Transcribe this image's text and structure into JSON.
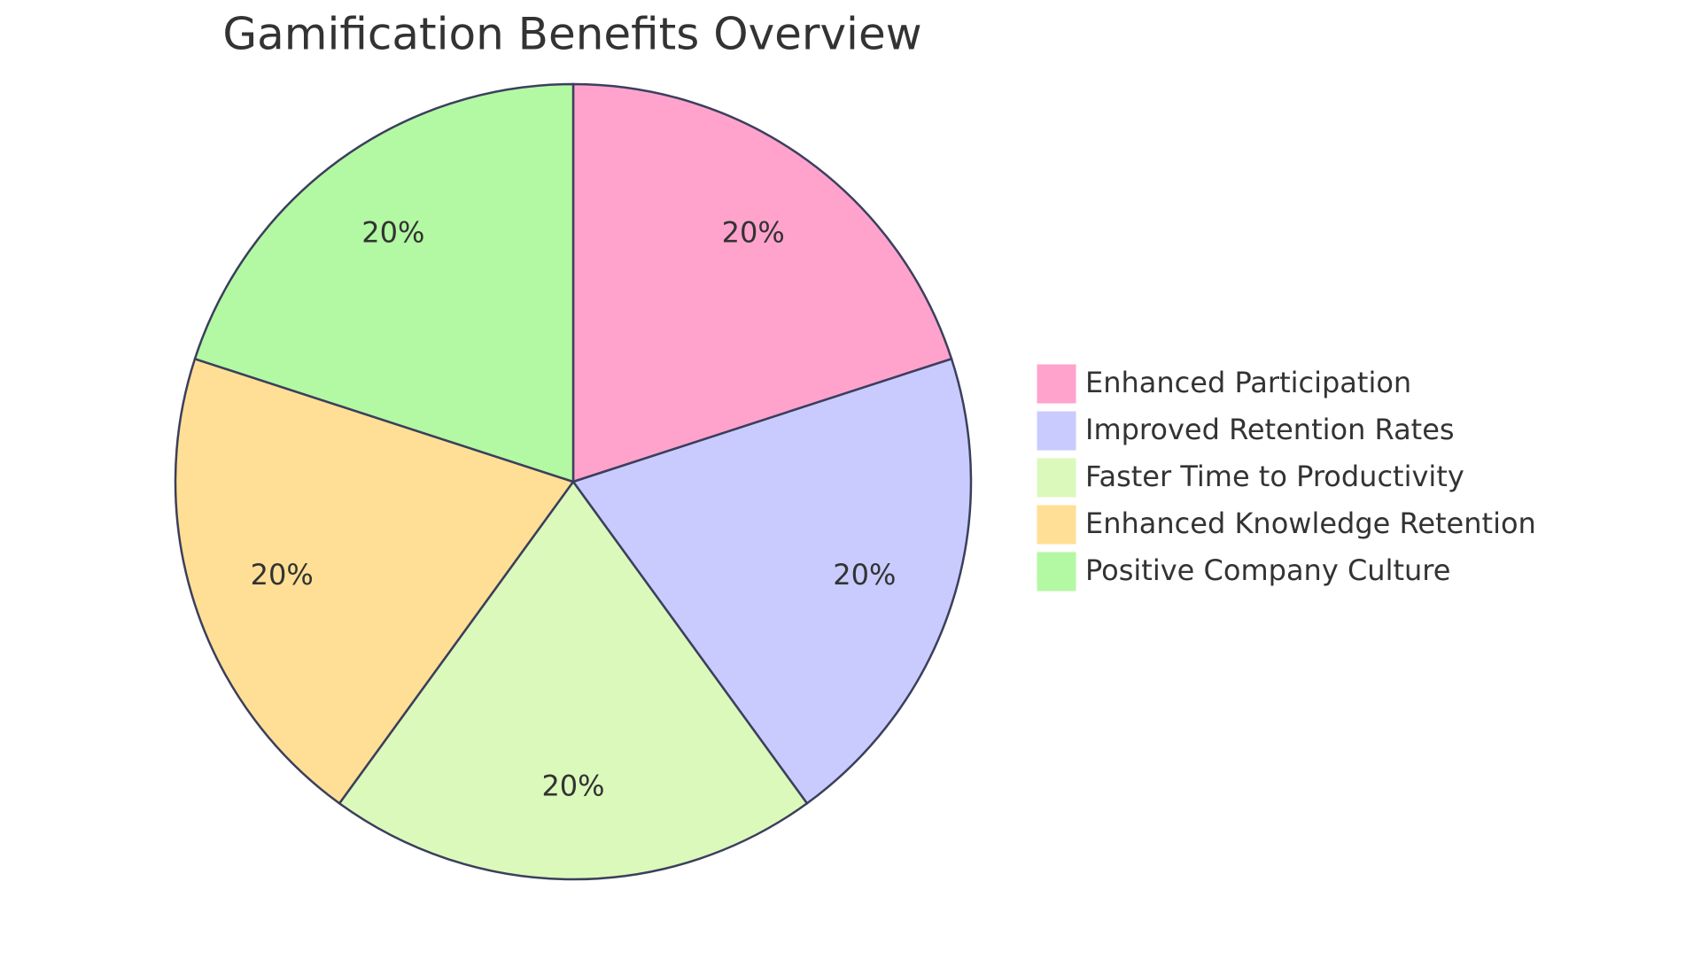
{
  "chart_data": {
    "type": "pie",
    "title": "Gamification Benefits Overview",
    "categories": [
      "Enhanced Participation",
      "Improved Retention Rates",
      "Faster Time to Productivity",
      "Enhanced Knowledge Retention",
      "Positive Company Culture"
    ],
    "values": [
      20,
      20,
      20,
      20,
      20
    ],
    "value_labels": [
      "20%",
      "20%",
      "20%",
      "20%",
      "20%"
    ],
    "colors": [
      "#ffa3cd",
      "#c9cbff",
      "#dbf9bb",
      "#ffdf95",
      "#b3f8a3"
    ],
    "legend": "right"
  }
}
